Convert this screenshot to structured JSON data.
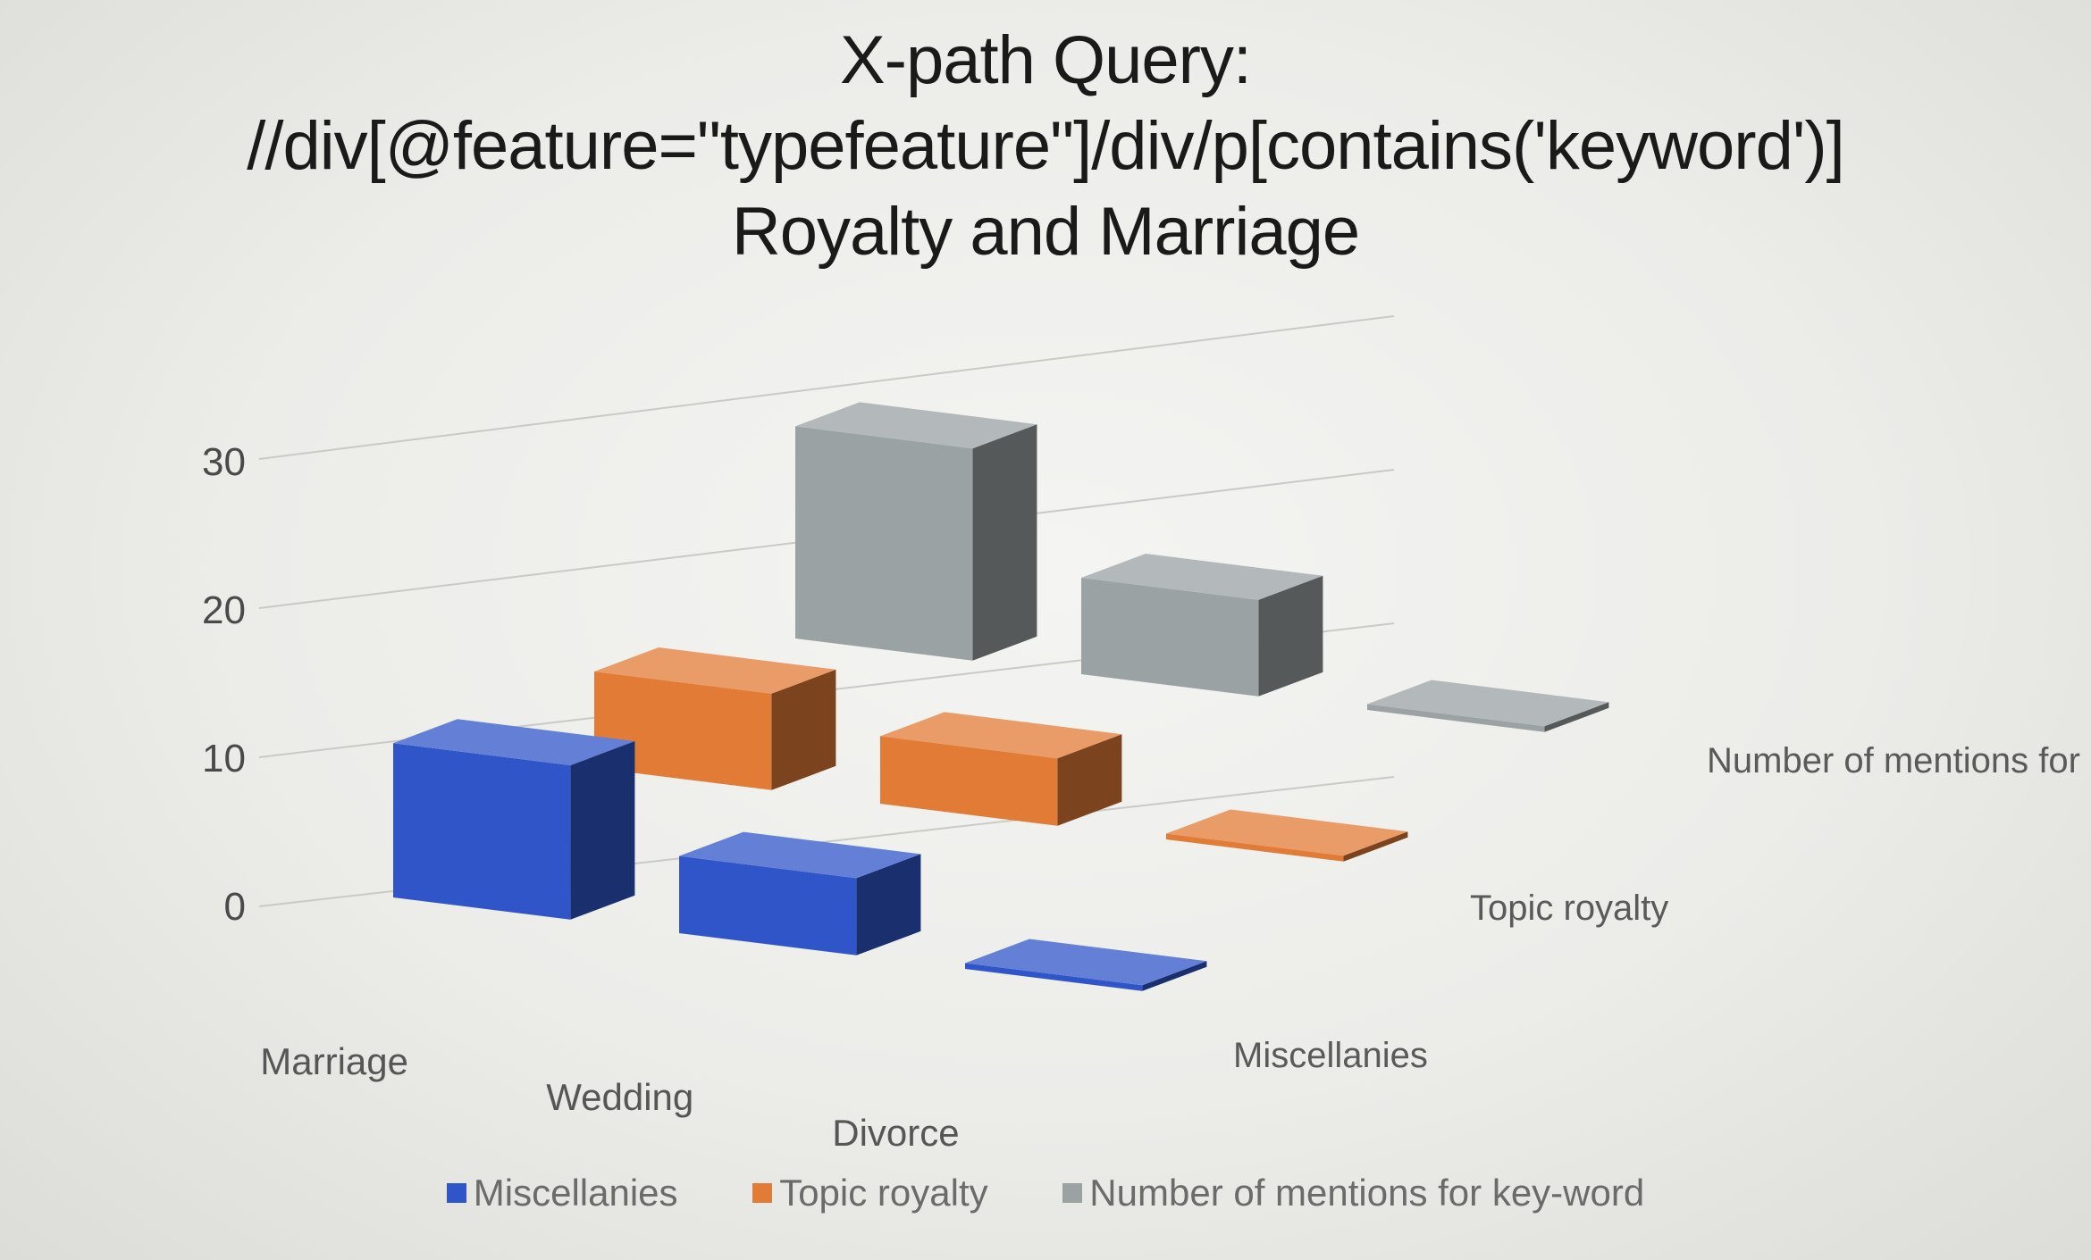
{
  "title": {
    "line1": "X-path Query:",
    "line2": "//div[@feature=\"typefeature\"]/div/p[contains('keyword')]",
    "line3": "Royalty and Marriage"
  },
  "chart_data": {
    "type": "bar",
    "style": "3d-column",
    "categories": [
      "Marriage",
      "Wedding",
      "Divorce"
    ],
    "series": [
      {
        "name": "Miscellanies",
        "values": [
          16,
          8,
          0
        ],
        "color": "#2f55c8"
      },
      {
        "name": "Topic royalty",
        "values": [
          10,
          7,
          0
        ],
        "color": "#e17b36"
      },
      {
        "name": "Number of mentions for key-word",
        "values": [
          22,
          10,
          0
        ],
        "color": "#9aa2a4"
      }
    ],
    "y_ticks": [
      "0",
      "10",
      "20",
      "30"
    ],
    "ylim": [
      0,
      30
    ],
    "grid": true,
    "legend_position": "bottom",
    "xlabel": "",
    "ylabel": ""
  },
  "legend": [
    {
      "label": "Miscellanies",
      "color": "#2f55c8"
    },
    {
      "label": "Topic royalty",
      "color": "#e17b36"
    },
    {
      "label": "Number of mentions for key-word",
      "color": "#9aa2a4"
    }
  ]
}
